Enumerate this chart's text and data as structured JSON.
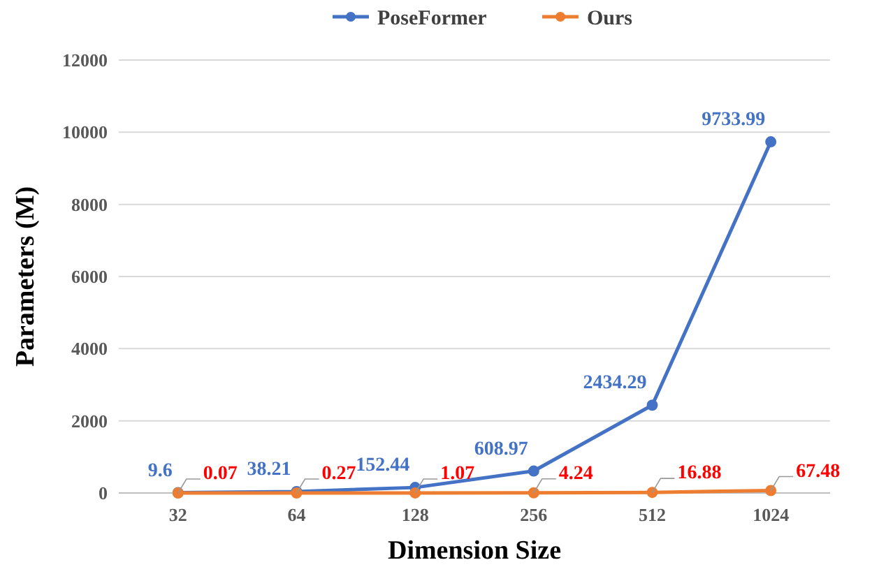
{
  "chart_data": {
    "type": "line",
    "xlabel": "Dimension Size",
    "ylabel": "Parameters (M)",
    "categories": [
      "32",
      "64",
      "128",
      "256",
      "512",
      "1024"
    ],
    "series": [
      {
        "name": "PoseFormer",
        "color": "#4472c4",
        "values": [
          9.6,
          38.21,
          152.44,
          608.97,
          2434.29,
          9733.99
        ]
      },
      {
        "name": "Ours",
        "color": "#ed7d31",
        "values": [
          0.07,
          0.27,
          1.07,
          4.24,
          16.88,
          67.48
        ]
      }
    ],
    "ylim": [
      0,
      12000
    ],
    "yticks": [
      0,
      2000,
      4000,
      6000,
      8000,
      10000,
      12000
    ],
    "grid": "y",
    "legend": "top",
    "marker": "circle",
    "line_style": "solid",
    "data_labels": true
  }
}
